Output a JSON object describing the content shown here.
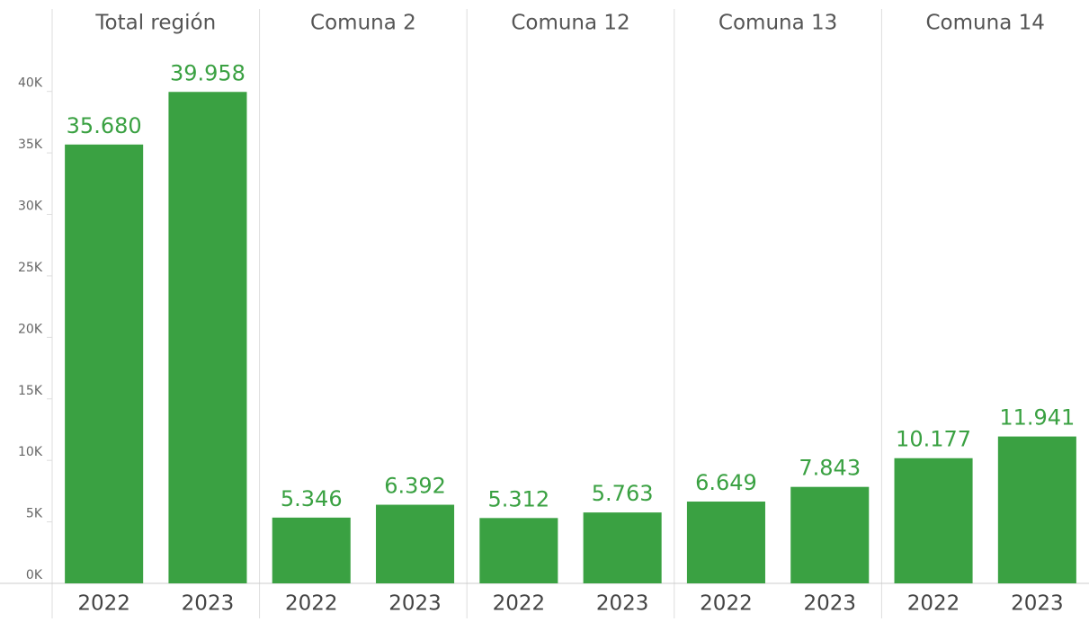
{
  "chart_data": {
    "type": "bar",
    "color": "#3aa142",
    "groups": [
      {
        "name": "Total región",
        "categories": [
          "2022",
          "2023"
        ],
        "values": [
          35680,
          39958
        ],
        "value_labels": [
          "35.680",
          "39.958"
        ]
      },
      {
        "name": "Comuna 2",
        "categories": [
          "2022",
          "2023"
        ],
        "values": [
          5346,
          6392
        ],
        "value_labels": [
          "5.346",
          "6.392"
        ]
      },
      {
        "name": "Comuna 12",
        "categories": [
          "2022",
          "2023"
        ],
        "values": [
          5312,
          5763
        ],
        "value_labels": [
          "5.312",
          "5.763"
        ]
      },
      {
        "name": "Comuna 13",
        "categories": [
          "2022",
          "2023"
        ],
        "values": [
          6649,
          7843
        ],
        "value_labels": [
          "6.649",
          "7.843"
        ]
      },
      {
        "name": "Comuna 14",
        "categories": [
          "2022",
          "2023"
        ],
        "values": [
          10177,
          11941
        ],
        "value_labels": [
          "10.177",
          "11.941"
        ]
      }
    ],
    "ylim": [
      0,
      46700
    ],
    "yticks": [
      {
        "value": 0,
        "label": "0K"
      },
      {
        "value": 5000,
        "label": "5K"
      },
      {
        "value": 10000,
        "label": "10K"
      },
      {
        "value": 15000,
        "label": "15K"
      },
      {
        "value": 20000,
        "label": "20K"
      },
      {
        "value": 25000,
        "label": "25K"
      },
      {
        "value": 30000,
        "label": "30K"
      },
      {
        "value": 35000,
        "label": "35K"
      },
      {
        "value": 40000,
        "label": "40K"
      }
    ],
    "grid": false
  }
}
